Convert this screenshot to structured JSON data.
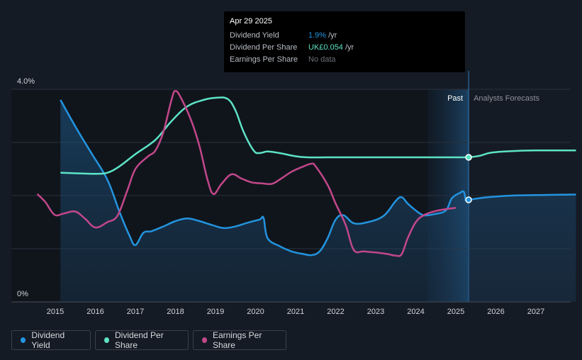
{
  "chart_data": {
    "type": "line",
    "x_range": [
      2014.5,
      2028.0
    ],
    "y_range_pct": [
      0,
      4.0
    ],
    "y_labels": [
      "4.0%",
      "0%"
    ],
    "x_ticks": [
      "2015",
      "2016",
      "2017",
      "2018",
      "2019",
      "2020",
      "2021",
      "2022",
      "2023",
      "2024",
      "2025",
      "2026",
      "2027"
    ],
    "regions": {
      "past_label": "Past",
      "forecast_label": "Analysts Forecasts",
      "divider_x": 2025.32,
      "past_band_start": 2024.3
    },
    "series": [
      {
        "name": "Dividend Yield",
        "unit": "%",
        "color": "#2394df",
        "filled": true,
        "points": [
          [
            2015.13,
            3.8
          ],
          [
            2015.5,
            3.3
          ],
          [
            2015.9,
            2.8
          ],
          [
            2016.3,
            2.3
          ],
          [
            2016.6,
            1.7
          ],
          [
            2016.85,
            1.25
          ],
          [
            2017.0,
            1.07
          ],
          [
            2017.2,
            1.3
          ],
          [
            2017.4,
            1.33
          ],
          [
            2017.7,
            1.42
          ],
          [
            2018.0,
            1.52
          ],
          [
            2018.3,
            1.57
          ],
          [
            2018.6,
            1.52
          ],
          [
            2018.9,
            1.45
          ],
          [
            2019.2,
            1.39
          ],
          [
            2019.5,
            1.42
          ],
          [
            2019.8,
            1.49
          ],
          [
            2020.1,
            1.55
          ],
          [
            2020.2,
            1.58
          ],
          [
            2020.3,
            1.2
          ],
          [
            2020.6,
            1.05
          ],
          [
            2020.9,
            0.95
          ],
          [
            2021.2,
            0.9
          ],
          [
            2021.4,
            0.88
          ],
          [
            2021.6,
            0.95
          ],
          [
            2021.8,
            1.2
          ],
          [
            2022.0,
            1.55
          ],
          [
            2022.2,
            1.63
          ],
          [
            2022.45,
            1.48
          ],
          [
            2022.8,
            1.5
          ],
          [
            2023.2,
            1.62
          ],
          [
            2023.5,
            1.9
          ],
          [
            2023.65,
            1.97
          ],
          [
            2023.8,
            1.85
          ],
          [
            2024.0,
            1.72
          ],
          [
            2024.2,
            1.63
          ],
          [
            2024.45,
            1.65
          ],
          [
            2024.75,
            1.72
          ],
          [
            2024.9,
            1.95
          ],
          [
            2025.1,
            2.05
          ],
          [
            2025.2,
            2.07
          ],
          [
            2025.25,
            1.9
          ]
        ],
        "forecast": [
          [
            2025.32,
            1.92
          ],
          [
            2025.8,
            1.97
          ],
          [
            2026.4,
            2.0
          ],
          [
            2027.0,
            2.01
          ],
          [
            2028.0,
            2.02
          ]
        ]
      },
      {
        "name": "Dividend Per Share",
        "unit": "GBP",
        "color": "#5de3c6",
        "filled": false,
        "points": [
          [
            2015.13,
            2.43
          ],
          [
            2015.5,
            2.42
          ],
          [
            2016.0,
            2.41
          ],
          [
            2016.3,
            2.43
          ],
          [
            2016.6,
            2.55
          ],
          [
            2017.0,
            2.78
          ],
          [
            2017.5,
            3.05
          ],
          [
            2017.9,
            3.4
          ],
          [
            2018.3,
            3.68
          ],
          [
            2018.7,
            3.8
          ],
          [
            2019.0,
            3.84
          ],
          [
            2019.3,
            3.82
          ],
          [
            2019.5,
            3.6
          ],
          [
            2019.7,
            3.2
          ],
          [
            2019.95,
            2.85
          ],
          [
            2020.1,
            2.8
          ],
          [
            2020.3,
            2.83
          ],
          [
            2020.6,
            2.8
          ],
          [
            2021.0,
            2.74
          ],
          [
            2021.3,
            2.72
          ],
          [
            2021.8,
            2.72
          ],
          [
            2022.5,
            2.72
          ],
          [
            2023.5,
            2.72
          ],
          [
            2024.5,
            2.72
          ],
          [
            2025.25,
            2.72
          ]
        ],
        "forecast": [
          [
            2025.32,
            2.72
          ],
          [
            2025.6,
            2.75
          ],
          [
            2025.9,
            2.81
          ],
          [
            2026.5,
            2.84
          ],
          [
            2027.0,
            2.85
          ],
          [
            2028.0,
            2.85
          ]
        ]
      },
      {
        "name": "Earnings Per Share",
        "unit": "GBP",
        "color": "#c2478a",
        "filled": false,
        "points": [
          [
            2014.55,
            2.03
          ],
          [
            2014.75,
            1.88
          ],
          [
            2014.98,
            1.64
          ],
          [
            2015.2,
            1.66
          ],
          [
            2015.5,
            1.7
          ],
          [
            2015.75,
            1.56
          ],
          [
            2016.0,
            1.4
          ],
          [
            2016.3,
            1.5
          ],
          [
            2016.55,
            1.62
          ],
          [
            2016.8,
            2.1
          ],
          [
            2017.0,
            2.5
          ],
          [
            2017.3,
            2.73
          ],
          [
            2017.5,
            2.85
          ],
          [
            2017.7,
            3.2
          ],
          [
            2017.9,
            3.8
          ],
          [
            2018.0,
            3.97
          ],
          [
            2018.15,
            3.82
          ],
          [
            2018.4,
            3.4
          ],
          [
            2018.6,
            2.93
          ],
          [
            2018.8,
            2.3
          ],
          [
            2018.95,
            2.03
          ],
          [
            2019.15,
            2.22
          ],
          [
            2019.4,
            2.4
          ],
          [
            2019.65,
            2.32
          ],
          [
            2019.9,
            2.25
          ],
          [
            2020.15,
            2.23
          ],
          [
            2020.4,
            2.22
          ],
          [
            2020.6,
            2.3
          ],
          [
            2020.9,
            2.45
          ],
          [
            2021.2,
            2.55
          ],
          [
            2021.4,
            2.6
          ],
          [
            2021.5,
            2.55
          ],
          [
            2021.8,
            2.2
          ],
          [
            2022.0,
            1.85
          ],
          [
            2022.25,
            1.45
          ],
          [
            2022.45,
            0.98
          ],
          [
            2022.7,
            0.95
          ],
          [
            2023.0,
            0.93
          ],
          [
            2023.3,
            0.9
          ],
          [
            2023.5,
            0.87
          ],
          [
            2023.65,
            0.9
          ],
          [
            2023.8,
            1.2
          ],
          [
            2024.0,
            1.5
          ],
          [
            2024.2,
            1.63
          ],
          [
            2024.45,
            1.7
          ],
          [
            2024.7,
            1.74
          ],
          [
            2025.0,
            1.77
          ]
        ],
        "forecast": []
      }
    ]
  },
  "tooltip": {
    "date": "Apr 29 2025",
    "rows": [
      {
        "label": "Dividend Yield",
        "value": "1.9%",
        "unit": "/yr"
      },
      {
        "label": "Dividend Per Share",
        "value": "UK£0.054",
        "unit": "/yr"
      },
      {
        "label": "Earnings Per Share",
        "value": "No data",
        "unit": ""
      }
    ]
  },
  "legend": {
    "items": [
      {
        "label": "Dividend Yield",
        "color": "#2394df"
      },
      {
        "label": "Dividend Per Share",
        "color": "#5de3c6"
      },
      {
        "label": "Earnings Per Share",
        "color": "#c2478a"
      }
    ]
  }
}
